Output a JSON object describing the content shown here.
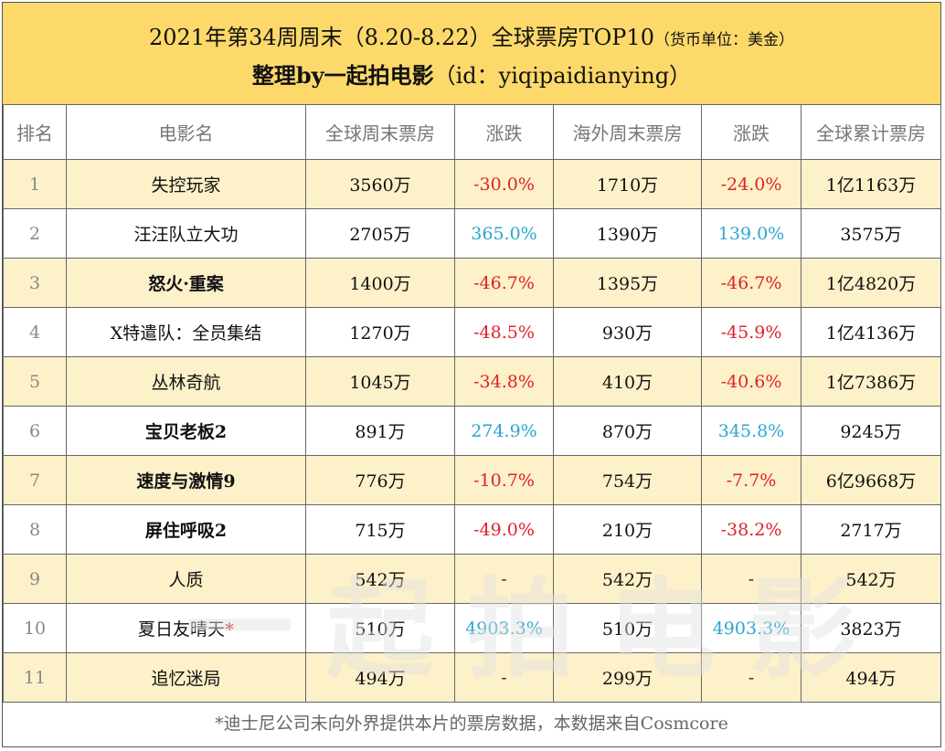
{
  "header": {
    "title": "2021年第34周周末（8.20-8.22）全球票房TOP10",
    "unit_note": "（货币单位：美金）",
    "subtitle_bold": "整理by一起拍电影",
    "subtitle_id": "（id：yiqipaidianying）"
  },
  "table": {
    "columns": [
      "排名",
      "电影名",
      "全球周末票房",
      "涨跌",
      "海外周末票房",
      "涨跌",
      "全球累计票房"
    ],
    "rows": [
      {
        "rank": "1",
        "title": "失控玩家",
        "title_bold": false,
        "star": "",
        "global_weekend": "3560万",
        "global_change": "-30.0%",
        "global_change_type": "neg",
        "overseas_weekend": "1710万",
        "overseas_change": "-24.0%",
        "overseas_change_type": "neg",
        "global_total": "1亿1163万"
      },
      {
        "rank": "2",
        "title": "汪汪队立大功",
        "title_bold": false,
        "star": "",
        "global_weekend": "2705万",
        "global_change": "365.0%",
        "global_change_type": "pos",
        "overseas_weekend": "1390万",
        "overseas_change": "139.0%",
        "overseas_change_type": "pos",
        "global_total": "3575万"
      },
      {
        "rank": "3",
        "title": "怒火·重案",
        "title_bold": true,
        "star": "",
        "global_weekend": "1400万",
        "global_change": "-46.7%",
        "global_change_type": "neg",
        "overseas_weekend": "1395万",
        "overseas_change": "-46.7%",
        "overseas_change_type": "neg",
        "global_total": "1亿4820万"
      },
      {
        "rank": "4",
        "title": "X特遣队：全员集结",
        "title_bold": false,
        "star": "",
        "global_weekend": "1270万",
        "global_change": "-48.5%",
        "global_change_type": "neg",
        "overseas_weekend": "930万",
        "overseas_change": "-45.9%",
        "overseas_change_type": "neg",
        "global_total": "1亿4136万"
      },
      {
        "rank": "5",
        "title": "丛林奇航",
        "title_bold": false,
        "star": "",
        "global_weekend": "1045万",
        "global_change": "-34.8%",
        "global_change_type": "neg",
        "overseas_weekend": "410万",
        "overseas_change": "-40.6%",
        "overseas_change_type": "neg",
        "global_total": "1亿7386万"
      },
      {
        "rank": "6",
        "title": "宝贝老板2",
        "title_bold": true,
        "star": "",
        "global_weekend": "891万",
        "global_change": "274.9%",
        "global_change_type": "pos",
        "overseas_weekend": "870万",
        "overseas_change": "345.8%",
        "overseas_change_type": "pos",
        "global_total": "9245万"
      },
      {
        "rank": "7",
        "title": "速度与激情9",
        "title_bold": true,
        "star": "",
        "global_weekend": "776万",
        "global_change": "-10.7%",
        "global_change_type": "neg",
        "overseas_weekend": "754万",
        "overseas_change": "-7.7%",
        "overseas_change_type": "neg",
        "global_total": "6亿9668万"
      },
      {
        "rank": "8",
        "title": "屏住呼吸2",
        "title_bold": true,
        "star": "",
        "global_weekend": "715万",
        "global_change": "-49.0%",
        "global_change_type": "neg",
        "overseas_weekend": "210万",
        "overseas_change": "-38.2%",
        "overseas_change_type": "neg",
        "global_total": "2717万"
      },
      {
        "rank": "9",
        "title": "人质",
        "title_bold": false,
        "star": "",
        "global_weekend": "542万",
        "global_change": "-",
        "global_change_type": "dash",
        "overseas_weekend": "542万",
        "overseas_change": "-",
        "overseas_change_type": "dash",
        "global_total": "542万"
      },
      {
        "rank": "10",
        "title": "夏日友晴天",
        "title_bold": false,
        "star": "*",
        "global_weekend": "510万",
        "global_change": "4903.3%",
        "global_change_type": "pos",
        "overseas_weekend": "510万",
        "overseas_change": "4903.3%",
        "overseas_change_type": "pos",
        "global_total": "3823万"
      },
      {
        "rank": "11",
        "title": "追忆迷局",
        "title_bold": false,
        "star": "",
        "global_weekend": "494万",
        "global_change": "-",
        "global_change_type": "dash",
        "overseas_weekend": "299万",
        "overseas_change": "-",
        "overseas_change_type": "dash",
        "global_total": "494万"
      }
    ]
  },
  "footnote": "*迪士尼公司未向外界提供本片的票房数据，本数据来自Cosmcore",
  "watermark": {
    "text": "一起拍电影",
    "icon": "film-camera-icon"
  },
  "colors": {
    "header_bg": "#FCD96A",
    "odd_row_bg": "#FDF1C9",
    "negative": "#E0212B",
    "positive": "#2BA6CF"
  }
}
